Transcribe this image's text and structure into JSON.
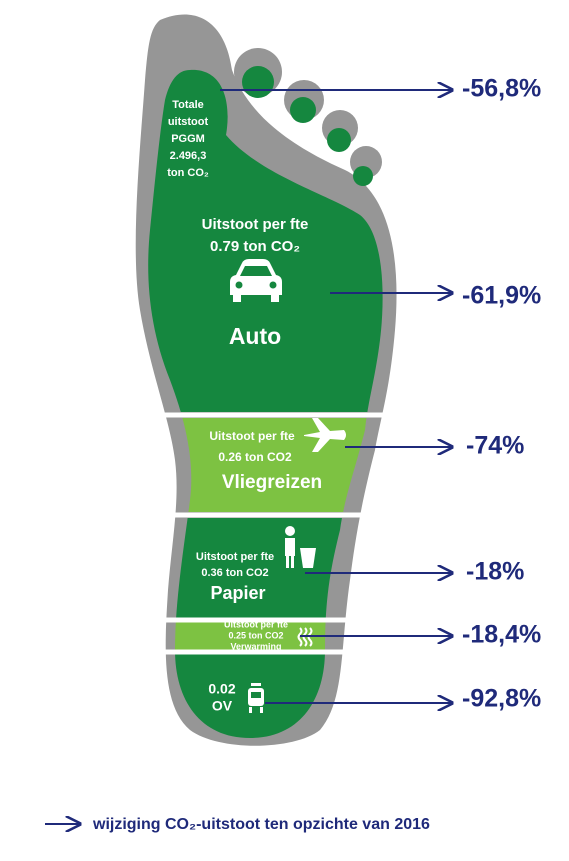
{
  "total": {
    "lines": [
      "Totale",
      "uitstoot",
      "PGGM",
      "2.496,3",
      "ton CO₂"
    ],
    "change": "-56,8%"
  },
  "segments": [
    {
      "name": "Auto",
      "lines": [
        "Uitstoot per fte",
        "0.79 ton CO₂"
      ],
      "change": "-61,9%"
    },
    {
      "name": "Vliegreizen",
      "lines": [
        "Uitstoot per fte",
        "0.26 ton CO2"
      ],
      "change": "-74%"
    },
    {
      "name": "Papier",
      "lines": [
        "Uitstoot per fte",
        "0.36 ton CO2"
      ],
      "change": "-18%"
    },
    {
      "name": "Verwarming",
      "lines": [
        "Uitstoot per fte",
        "0.25 ton CO2"
      ],
      "change": "-18,4%"
    },
    {
      "name": "OV",
      "lines": [
        "0.02"
      ],
      "change": "-92,8%"
    }
  ],
  "legend": "wijziging CO₂-uitstoot ten opzichte van 2016"
}
